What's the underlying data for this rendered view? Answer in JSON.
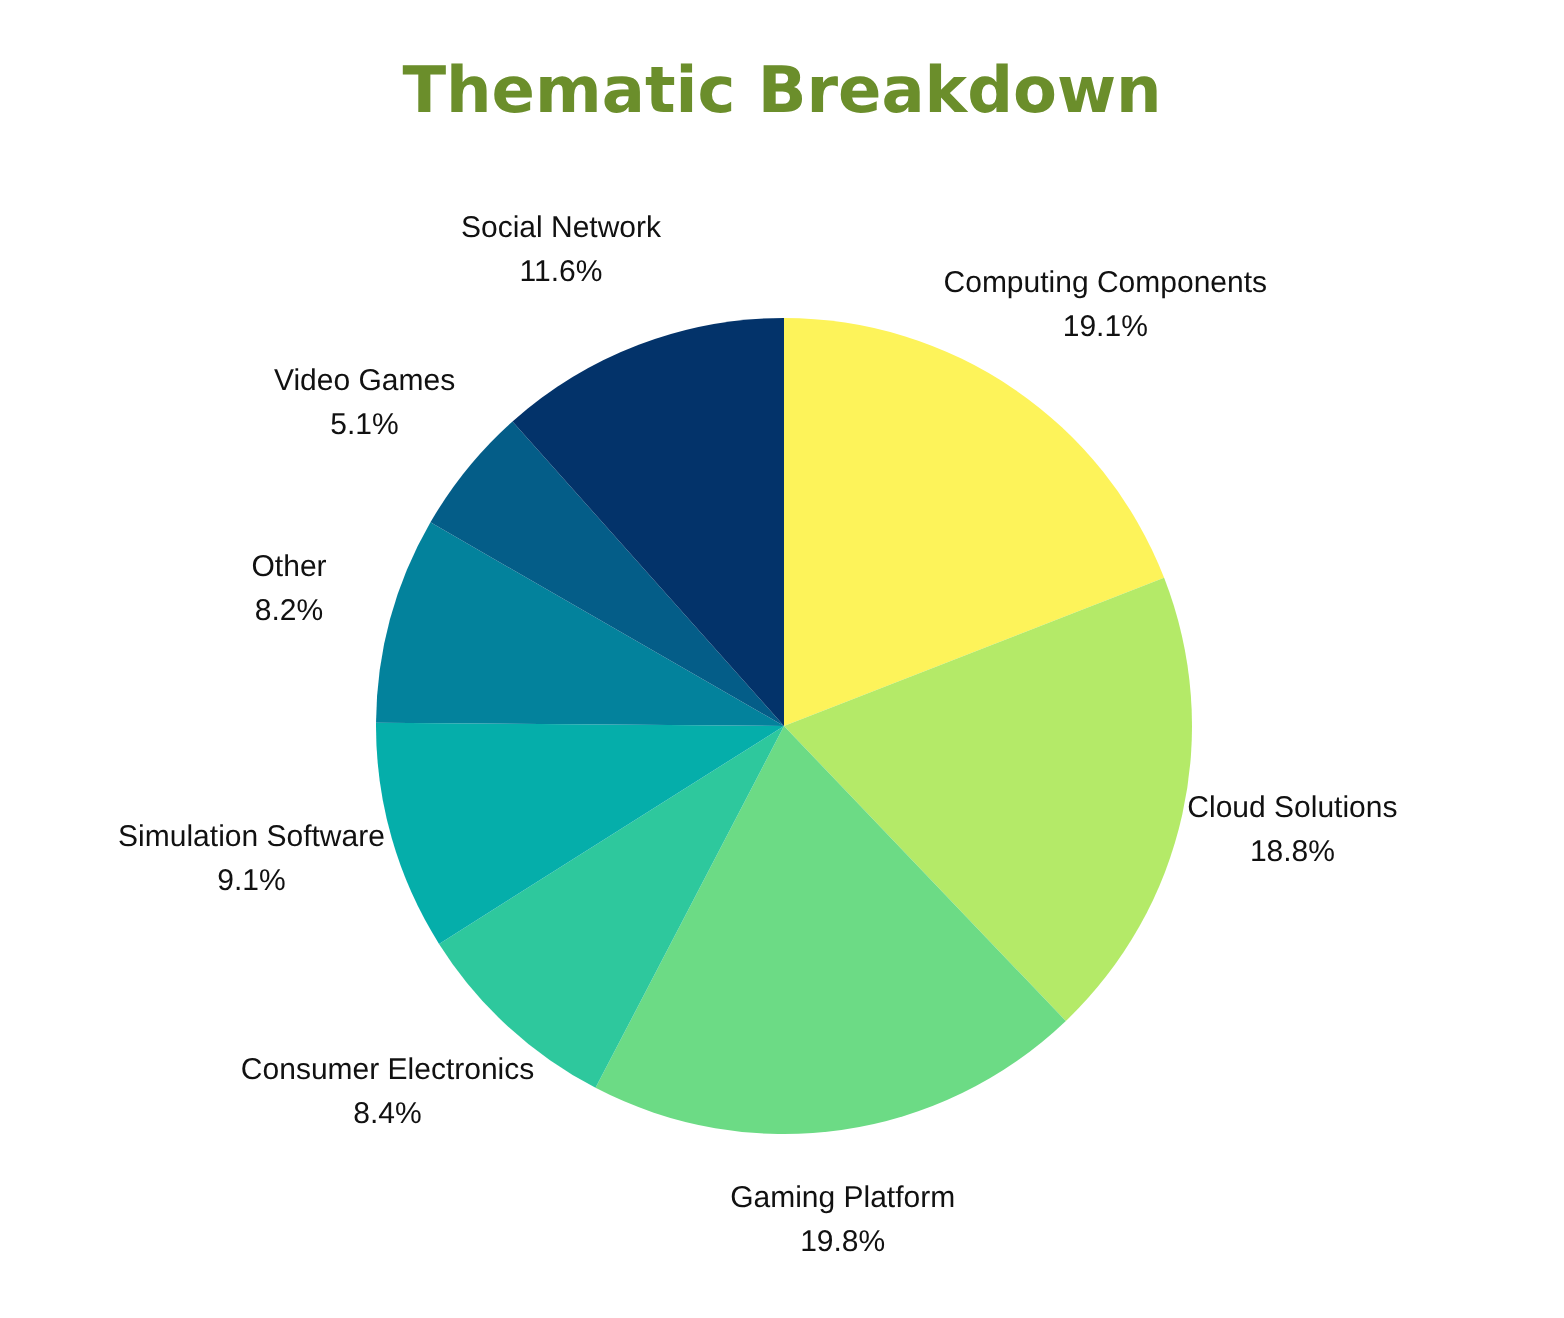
{
  "chart_data": {
    "type": "pie",
    "title": "Thematic Breakdown",
    "categories": [
      "Computing Components",
      "Cloud Solutions",
      "Gaming Platform",
      "Consumer Electronics",
      "Simulation Software",
      "Other",
      "Video Games",
      "Social Network"
    ],
    "values": [
      19.1,
      18.8,
      19.8,
      8.4,
      9.1,
      8.2,
      5.1,
      11.6
    ],
    "value_labels": [
      "19.1%",
      "18.8%",
      "19.8%",
      "8.4%",
      "9.1%",
      "8.2%",
      "5.1%",
      "11.6%"
    ],
    "colors": [
      "#fdf35a",
      "#b4ea68",
      "#6cdb85",
      "#2ec89d",
      "#05aeaa",
      "#03829c",
      "#045d88",
      "#03336a"
    ],
    "legend": false
  }
}
